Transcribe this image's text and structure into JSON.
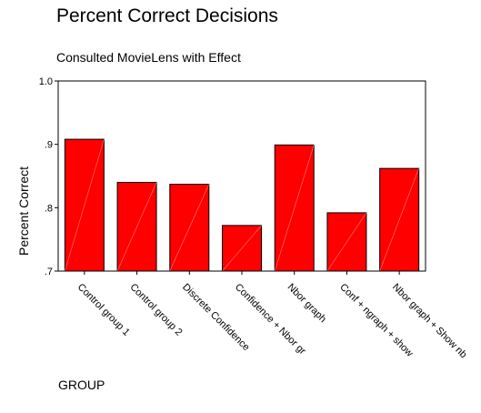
{
  "chart_data": {
    "type": "bar",
    "title": "Percent Correct Decisions",
    "subtitle": "Consulted MovieLens with Effect",
    "xlabel": "GROUP",
    "ylabel": "Percent Correct",
    "categories": [
      "Control group 1",
      "Control group 2",
      "Discrete Confidence",
      "Confidence + Nbor gr",
      "Nbor graph",
      "Conf + ngraph + show",
      "Nbor graph + Show nb"
    ],
    "values": [
      0.908,
      0.84,
      0.837,
      0.772,
      0.899,
      0.792,
      0.862
    ],
    "ylim": [
      0.7,
      1.0
    ],
    "yticks": [
      0.7,
      0.8,
      0.9,
      1.0
    ],
    "ytick_labels": [
      ".7",
      ".8",
      ".9",
      "1.0"
    ],
    "grid": false,
    "bar_color": "#ff0000"
  }
}
